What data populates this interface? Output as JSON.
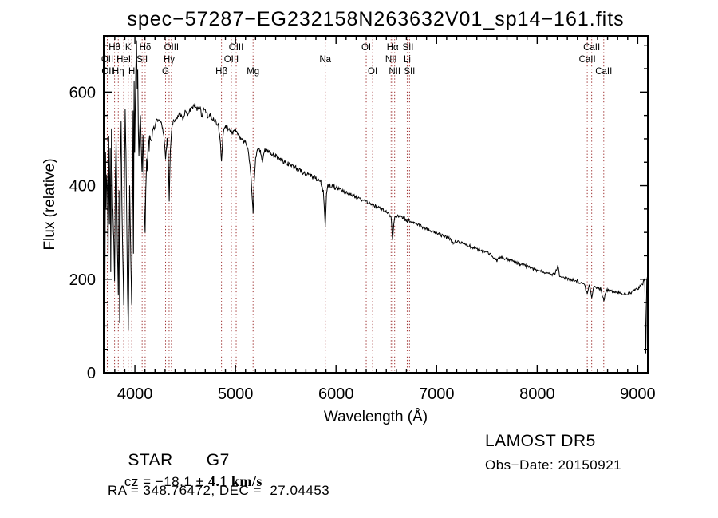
{
  "title": "spec−57287−EG232158N263632V01_sp14−161.fits",
  "annotations": {
    "object_type": "STAR",
    "subclass": "G7",
    "cz_prefix": "cz = −18.1 ",
    "cz_err": "± 4.1 km/s",
    "ra_dec": "RA = 348.76472, DEC =  27.04453",
    "survey": "LAMOST DR5",
    "obs_date": "Obs−Date: 20150921"
  },
  "chart_data": {
    "type": "line",
    "title": "spec−57287−EG232158N263632V01_sp14−161.fits",
    "xlabel": "Wavelength (Å)",
    "ylabel": "Flux (relative)",
    "xlim": [
      3690,
      9100
    ],
    "ylim": [
      0,
      720
    ],
    "x_major_ticks": [
      4000,
      5000,
      6000,
      7000,
      8000,
      9000
    ],
    "y_major_ticks": [
      0,
      200,
      400,
      600
    ],
    "x_minor_step": 100,
    "y_minor_step": 50,
    "grid": false,
    "legend": "none",
    "line_color": "#000000",
    "marker_color": "#9e3030",
    "spectral_lines": [
      {
        "label": "OII",
        "wavelength": 3726,
        "row": 1
      },
      {
        "label": "OII",
        "wavelength": 3730,
        "row": 2
      },
      {
        "label": "Hθ",
        "wavelength": 3798,
        "row": 0
      },
      {
        "label": "Hη",
        "wavelength": 3835,
        "row": 2
      },
      {
        "label": "HeI",
        "wavelength": 3889,
        "row": 1
      },
      {
        "label": "K",
        "wavelength": 3934,
        "row": 0
      },
      {
        "label": "H",
        "wavelength": 3969,
        "row": 2
      },
      {
        "label": "SII",
        "wavelength": 4072,
        "row": 1
      },
      {
        "label": "Hδ",
        "wavelength": 4102,
        "row": 0
      },
      {
        "label": "G",
        "wavelength": 4305,
        "row": 2
      },
      {
        "label": "Hγ",
        "wavelength": 4340,
        "row": 1
      },
      {
        "label": "OIII",
        "wavelength": 4363,
        "row": 0
      },
      {
        "label": "Hβ",
        "wavelength": 4861,
        "row": 2
      },
      {
        "label": "OIII",
        "wavelength": 4959,
        "row": 1
      },
      {
        "label": "OIII",
        "wavelength": 5007,
        "row": 0
      },
      {
        "label": "Mg",
        "wavelength": 5175,
        "row": 2
      },
      {
        "label": "Na",
        "wavelength": 5893,
        "row": 1
      },
      {
        "label": "OI",
        "wavelength": 6300,
        "row": 0
      },
      {
        "label": "OI",
        "wavelength": 6364,
        "row": 2
      },
      {
        "label": "NII",
        "wavelength": 6548,
        "row": 1
      },
      {
        "label": "Hα",
        "wavelength": 6563,
        "row": 0
      },
      {
        "label": "NII",
        "wavelength": 6583,
        "row": 2
      },
      {
        "label": "Li",
        "wavelength": 6708,
        "row": 1
      },
      {
        "label": "SII",
        "wavelength": 6716,
        "row": 0
      },
      {
        "label": "SII",
        "wavelength": 6731,
        "row": 2
      },
      {
        "label": "CaII",
        "wavelength": 8498,
        "row": 1
      },
      {
        "label": "CaII",
        "wavelength": 8542,
        "row": 0
      },
      {
        "label": "CaII",
        "wavelength": 8662,
        "row": 2
      }
    ],
    "noise": {
      "amp_blue": 10,
      "amp_mid": 5,
      "amp_red": 3.5,
      "blue_end": 4200,
      "mid_end": 6000,
      "step": 6
    },
    "series": [
      {
        "name": "spectrum",
        "points": [
          [
            3690,
            200
          ],
          [
            3696,
            430
          ],
          [
            3702,
            180
          ],
          [
            3708,
            470
          ],
          [
            3714,
            350
          ],
          [
            3720,
            430
          ],
          [
            3727,
            390
          ],
          [
            3734,
            240
          ],
          [
            3740,
            500
          ],
          [
            3747,
            310
          ],
          [
            3754,
            480
          ],
          [
            3760,
            210
          ],
          [
            3767,
            520
          ],
          [
            3774,
            430
          ],
          [
            3781,
            340
          ],
          [
            3790,
            280
          ],
          [
            3798,
            205
          ],
          [
            3806,
            420
          ],
          [
            3813,
            500
          ],
          [
            3820,
            380
          ],
          [
            3827,
            260
          ],
          [
            3835,
            165
          ],
          [
            3842,
            380
          ],
          [
            3849,
            100
          ],
          [
            3856,
            440
          ],
          [
            3863,
            530
          ],
          [
            3871,
            360
          ],
          [
            3879,
            250
          ],
          [
            3889,
            150
          ],
          [
            3896,
            420
          ],
          [
            3903,
            555
          ],
          [
            3911,
            480
          ],
          [
            3918,
            350
          ],
          [
            3926,
            185
          ],
          [
            3934,
            95
          ],
          [
            3941,
            230
          ],
          [
            3948,
            400
          ],
          [
            3955,
            305
          ],
          [
            3962,
            205
          ],
          [
            3969,
            140
          ],
          [
            3976,
            380
          ],
          [
            3982,
            555
          ],
          [
            3986,
            245
          ],
          [
            3992,
            615
          ],
          [
            3998,
            480
          ],
          [
            4004,
            580
          ],
          [
            4010,
            655
          ],
          [
            4016,
            705
          ],
          [
            4022,
            600
          ],
          [
            4028,
            640
          ],
          [
            4034,
            520
          ],
          [
            4040,
            455
          ],
          [
            4048,
            520
          ],
          [
            4056,
            552
          ],
          [
            4064,
            470
          ],
          [
            4072,
            425
          ],
          [
            4080,
            505
          ],
          [
            4088,
            432
          ],
          [
            4096,
            335
          ],
          [
            4102,
            292
          ],
          [
            4108,
            385
          ],
          [
            4116,
            462
          ],
          [
            4124,
            430
          ],
          [
            4132,
            495
          ],
          [
            4141,
            478
          ],
          [
            4150,
            508
          ],
          [
            4163,
            492
          ],
          [
            4175,
            518
          ],
          [
            4200,
            532
          ],
          [
            4225,
            542
          ],
          [
            4250,
            538
          ],
          [
            4275,
            524
          ],
          [
            4290,
            505
          ],
          [
            4305,
            458
          ],
          [
            4320,
            498
          ],
          [
            4332,
            462
          ],
          [
            4341,
            368
          ],
          [
            4352,
            470
          ],
          [
            4365,
            520
          ],
          [
            4380,
            538
          ],
          [
            4400,
            542
          ],
          [
            4425,
            548
          ],
          [
            4450,
            552
          ],
          [
            4475,
            543
          ],
          [
            4500,
            558
          ],
          [
            4525,
            552
          ],
          [
            4550,
            562
          ],
          [
            4575,
            568
          ],
          [
            4600,
            572
          ],
          [
            4625,
            562
          ],
          [
            4650,
            568
          ],
          [
            4668,
            545
          ],
          [
            4685,
            562
          ],
          [
            4700,
            560
          ],
          [
            4725,
            548
          ],
          [
            4750,
            552
          ],
          [
            4775,
            542
          ],
          [
            4800,
            538
          ],
          [
            4830,
            528
          ],
          [
            4845,
            505
          ],
          [
            4861,
            455
          ],
          [
            4880,
            518
          ],
          [
            4900,
            528
          ],
          [
            4925,
            522
          ],
          [
            4950,
            518
          ],
          [
            4975,
            512
          ],
          [
            5000,
            518
          ],
          [
            5025,
            508
          ],
          [
            5050,
            502
          ],
          [
            5075,
            498
          ],
          [
            5100,
            492
          ],
          [
            5125,
            478
          ],
          [
            5150,
            432
          ],
          [
            5167,
            372
          ],
          [
            5175,
            338
          ],
          [
            5185,
            405
          ],
          [
            5200,
            458
          ],
          [
            5225,
            478
          ],
          [
            5250,
            472
          ],
          [
            5270,
            452
          ],
          [
            5285,
            468
          ],
          [
            5300,
            478
          ],
          [
            5325,
            472
          ],
          [
            5350,
            468
          ],
          [
            5375,
            466
          ],
          [
            5400,
            463
          ],
          [
            5425,
            460
          ],
          [
            5450,
            456
          ],
          [
            5475,
            453
          ],
          [
            5500,
            450
          ],
          [
            5525,
            446
          ],
          [
            5550,
            443
          ],
          [
            5575,
            440
          ],
          [
            5600,
            438
          ],
          [
            5625,
            434
          ],
          [
            5650,
            431
          ],
          [
            5675,
            428
          ],
          [
            5700,
            426
          ],
          [
            5725,
            423
          ],
          [
            5750,
            420
          ],
          [
            5775,
            418
          ],
          [
            5800,
            416
          ],
          [
            5825,
            413
          ],
          [
            5850,
            408
          ],
          [
            5875,
            385
          ],
          [
            5893,
            308
          ],
          [
            5905,
            380
          ],
          [
            5920,
            400
          ],
          [
            5950,
            400
          ],
          [
            5975,
            398
          ],
          [
            6000,
            396
          ],
          [
            6050,
            390
          ],
          [
            6100,
            386
          ],
          [
            6150,
            381
          ],
          [
            6200,
            376
          ],
          [
            6250,
            371
          ],
          [
            6300,
            366
          ],
          [
            6350,
            360
          ],
          [
            6400,
            355
          ],
          [
            6450,
            350
          ],
          [
            6500,
            345
          ],
          [
            6530,
            340
          ],
          [
            6548,
            330
          ],
          [
            6563,
            283
          ],
          [
            6578,
            325
          ],
          [
            6590,
            333
          ],
          [
            6625,
            336
          ],
          [
            6675,
            331
          ],
          [
            6708,
            322
          ],
          [
            6725,
            326
          ],
          [
            6775,
            321
          ],
          [
            6825,
            316
          ],
          [
            6875,
            310
          ],
          [
            6925,
            306
          ],
          [
            6975,
            301
          ],
          [
            7025,
            296
          ],
          [
            7075,
            291
          ],
          [
            7125,
            287
          ],
          [
            7165,
            276
          ],
          [
            7185,
            280
          ],
          [
            7225,
            279
          ],
          [
            7275,
            275
          ],
          [
            7325,
            271
          ],
          [
            7375,
            267
          ],
          [
            7425,
            263
          ],
          [
            7475,
            259
          ],
          [
            7525,
            255
          ],
          [
            7570,
            246
          ],
          [
            7600,
            240
          ],
          [
            7625,
            248
          ],
          [
            7675,
            245
          ],
          [
            7725,
            241
          ],
          [
            7775,
            237
          ],
          [
            7825,
            233
          ],
          [
            7875,
            229
          ],
          [
            7925,
            225
          ],
          [
            7975,
            221
          ],
          [
            8025,
            218
          ],
          [
            8075,
            215
          ],
          [
            8125,
            212
          ],
          [
            8175,
            209
          ],
          [
            8205,
            230
          ],
          [
            8225,
            206
          ],
          [
            8275,
            203
          ],
          [
            8325,
            200
          ],
          [
            8375,
            197
          ],
          [
            8425,
            194
          ],
          [
            8465,
            191
          ],
          [
            8498,
            170
          ],
          [
            8520,
            187
          ],
          [
            8542,
            160
          ],
          [
            8565,
            184
          ],
          [
            8600,
            181
          ],
          [
            8630,
            179
          ],
          [
            8662,
            155
          ],
          [
            8690,
            177
          ],
          [
            8730,
            175
          ],
          [
            8770,
            173
          ],
          [
            8810,
            171
          ],
          [
            8850,
            170
          ],
          [
            8890,
            169
          ],
          [
            8930,
            171
          ],
          [
            8970,
            175
          ],
          [
            9010,
            181
          ],
          [
            9050,
            191
          ],
          [
            9070,
            200
          ],
          [
            9080,
            40
          ],
          [
            9090,
            195
          ],
          [
            9100,
            207
          ]
        ]
      }
    ]
  }
}
